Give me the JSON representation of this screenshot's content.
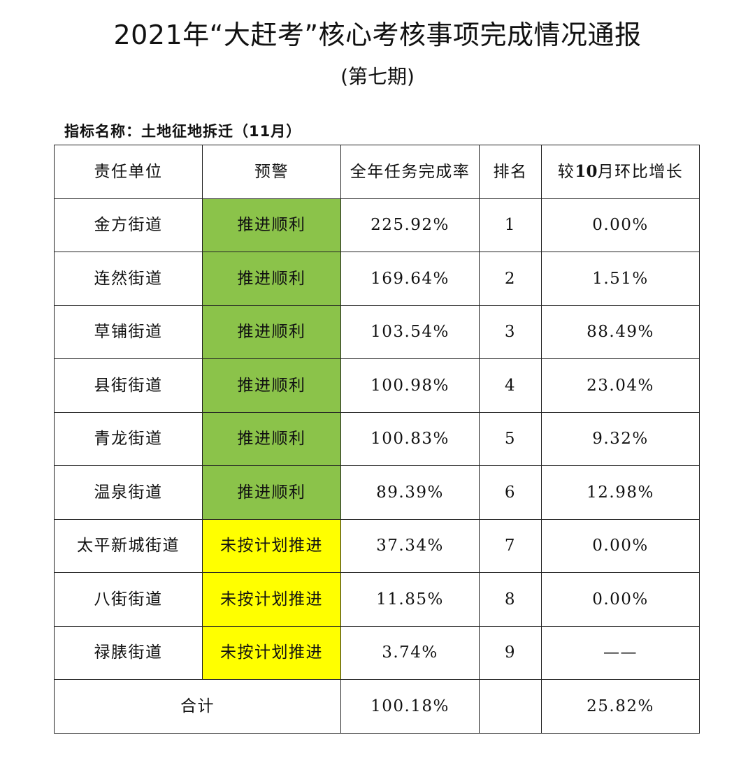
{
  "header": {
    "title": "2021年“大赶考”核心考核事项完成情况通报",
    "issue": "(第七期)",
    "indicator": "指标名称：土地征地拆迁（11月）"
  },
  "table": {
    "columns": {
      "unit": "责任单位",
      "warning": "预警",
      "rate": "全年任务完成率",
      "rank": "排名",
      "mom_prefix": "较",
      "mom_num": "10",
      "mom_suffix": "月环比增长"
    },
    "rows": [
      {
        "unit": "金方街道",
        "warning": "推进顺利",
        "status": "green",
        "rate": "225.92%",
        "rank": "1",
        "mom": "0.00%"
      },
      {
        "unit": "连然街道",
        "warning": "推进顺利",
        "status": "green",
        "rate": "169.64%",
        "rank": "2",
        "mom": "1.51%"
      },
      {
        "unit": "草铺街道",
        "warning": "推进顺利",
        "status": "green",
        "rate": "103.54%",
        "rank": "3",
        "mom": "88.49%"
      },
      {
        "unit": "县街街道",
        "warning": "推进顺利",
        "status": "green",
        "rate": "100.98%",
        "rank": "4",
        "mom": "23.04%"
      },
      {
        "unit": "青龙街道",
        "warning": "推进顺利",
        "status": "green",
        "rate": "100.83%",
        "rank": "5",
        "mom": "9.32%"
      },
      {
        "unit": "温泉街道",
        "warning": "推进顺利",
        "status": "green",
        "rate": "89.39%",
        "rank": "6",
        "mom": "12.98%"
      },
      {
        "unit": "太平新城街道",
        "warning": "未按计划推进",
        "status": "yellow",
        "rate": "37.34%",
        "rank": "7",
        "mom": "0.00%"
      },
      {
        "unit": "八街街道",
        "warning": "未按计划推进",
        "status": "yellow",
        "rate": "11.85%",
        "rank": "8",
        "mom": "0.00%"
      },
      {
        "unit": "禄脿街道",
        "warning": "未按计划推进",
        "status": "yellow",
        "rate": "3.74%",
        "rank": "9",
        "mom": "——"
      }
    ],
    "total": {
      "label": "合计",
      "rate": "100.18%",
      "rank": "",
      "mom": "25.82%"
    }
  },
  "colors": {
    "green": "#8bc34a",
    "yellow": "#ffff00",
    "border": "#222222"
  }
}
